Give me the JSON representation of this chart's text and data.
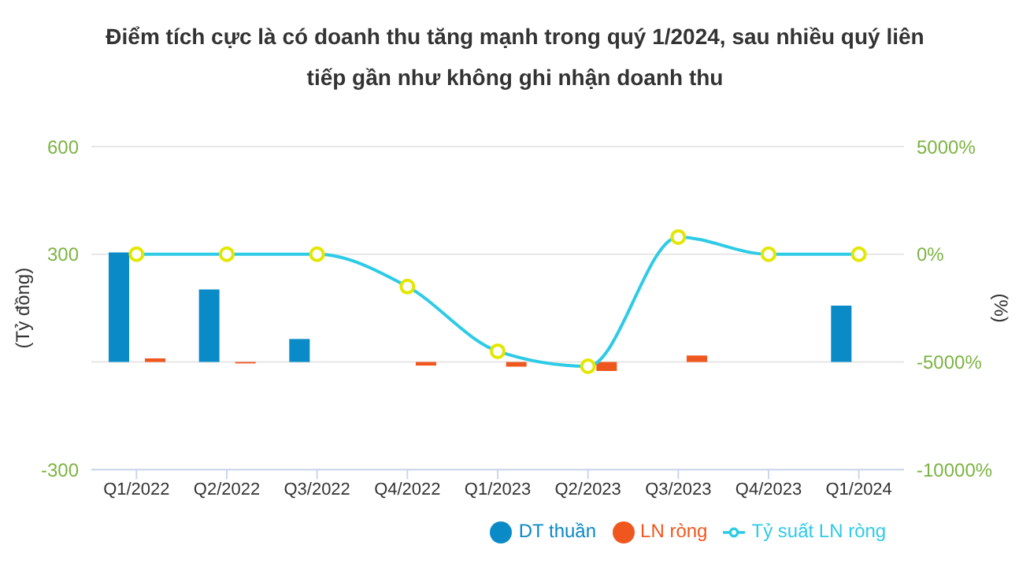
{
  "chart_data": {
    "type": "bar",
    "title": "Điểm tích cực là có doanh thu tăng mạnh trong quý 1/2024, sau nhiều quý liên tiếp gần như không ghi nhận doanh thu",
    "ylabel": "(Tỷ đồng)",
    "y2label": "(%)",
    "categories": [
      "Q1/2022",
      "Q2/2022",
      "Q3/2022",
      "Q4/2022",
      "Q1/2023",
      "Q2/2023",
      "Q3/2023",
      "Q4/2023",
      "Q1/2024"
    ],
    "series": [
      {
        "name": "DT thuần",
        "color": "#0a8ac6",
        "values": [
          305,
          202,
          64,
          0,
          0,
          0,
          0,
          0,
          157
        ]
      },
      {
        "name": "LN ròng",
        "color": "#f0571e",
        "values": [
          10,
          -4,
          0,
          -10,
          -13,
          -25,
          18,
          0,
          0
        ]
      },
      {
        "name": "Tỷ suất LN ròng",
        "type": "line",
        "axis": "y2",
        "color": "#2ecbe6",
        "values": [
          0,
          0,
          0,
          -1500,
          -4500,
          -5200,
          800,
          0,
          0
        ]
      }
    ],
    "ylim": [
      -300,
      600
    ],
    "yticks": [
      -300,
      {
        "value": 0,
        "label": null
      },
      300,
      600
    ],
    "y2lim": [
      -10000,
      5000
    ],
    "y2ticks": [
      {
        "value": -10000,
        "label": "-10000%"
      },
      {
        "value": -5000,
        "label": "-5000%"
      },
      {
        "value": 0,
        "label": "0%"
      },
      {
        "value": 5000,
        "label": "5000%"
      }
    ],
    "grid": "y",
    "legend": "bottom",
    "marker": "circle"
  }
}
